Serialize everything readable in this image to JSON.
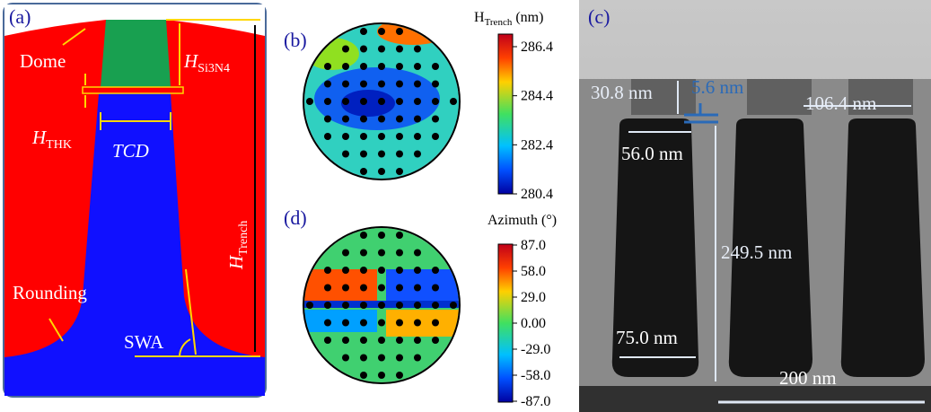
{
  "panel_a": {
    "label": "(a)",
    "dome": "Dome",
    "h_si3n4": {
      "main": "H",
      "sub": "Si3N4"
    },
    "h_thk": {
      "main": "H",
      "sub": "THK"
    },
    "tcd": "TCD",
    "h_trench": {
      "main": "H",
      "sub": "Trench"
    },
    "rounding": "Rounding",
    "swa": "SWA"
  },
  "panel_b": {
    "label": "(b)",
    "colorbar_title": {
      "main": "H",
      "sub": "Trench",
      "unit": " (nm)"
    },
    "colorbar_ticks": [
      "286.4",
      "284.4",
      "282.4",
      "280.4"
    ]
  },
  "panel_d": {
    "label": "(d)",
    "colorbar_title": "Azimuth (°)",
    "colorbar_ticks": [
      "87.0",
      "58.0",
      "29.0",
      "0.00",
      "-29.0",
      "-58.0",
      "-87.0"
    ]
  },
  "panel_c": {
    "label": "(c)",
    "annotations": [
      "30.8 nm",
      "5.6 nm",
      "106.4 nm",
      "56.0 nm",
      "249.5 nm",
      "75.0 nm",
      "200 nm"
    ]
  }
}
